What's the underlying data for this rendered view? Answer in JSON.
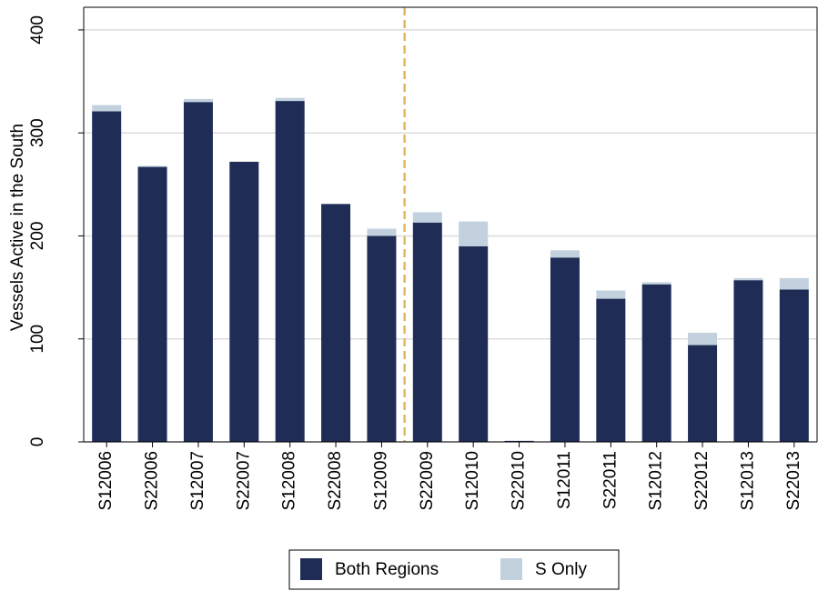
{
  "chart_data": {
    "type": "stacked_bar",
    "y_label": "Vessels Active in the South",
    "categories": [
      "S12006",
      "S22006",
      "S12007",
      "S22007",
      "S12008",
      "S22008",
      "S12009",
      "S22009",
      "S12010",
      "S22010",
      "S12011",
      "S22011",
      "S12012",
      "S22012",
      "S12013",
      "S22013"
    ],
    "series": [
      {
        "name": "Both Regions",
        "color": "#1f2d56",
        "values": [
          321,
          267,
          330,
          272,
          331,
          231,
          200,
          213,
          190,
          1,
          179,
          139,
          153,
          94,
          157,
          148
        ]
      },
      {
        "name": "S Only",
        "color": "#c3d1de",
        "values": [
          6,
          1,
          3,
          0,
          3,
          0,
          7,
          10,
          24,
          0,
          7,
          8,
          2,
          12,
          2,
          11
        ]
      }
    ],
    "ylim": [
      0,
      422
    ],
    "yticks": [
      0,
      100,
      200,
      300,
      400
    ],
    "grid": true,
    "divider": {
      "after": "S12009",
      "color": "#e3b75a"
    },
    "legend": "bottom"
  }
}
